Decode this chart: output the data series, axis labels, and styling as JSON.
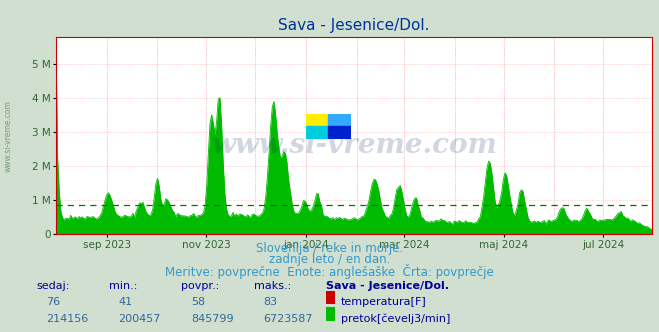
{
  "title": "Sava - Jesenice/Dol.",
  "title_color": "#003399",
  "bg_color": "#d0dfd0",
  "plot_bg_color": "#ffffff",
  "flow_color": "#00bb00",
  "temp_color": "#cc0000",
  "avg_line_color": "#007700",
  "ytick_labels": [
    "0",
    "1 M",
    "2 M",
    "3 M",
    "4 M",
    "5 M"
  ],
  "ytick_values": [
    0,
    1000000,
    2000000,
    3000000,
    4000000,
    5000000
  ],
  "tick_color": "#336633",
  "subtitle_lines": [
    "Slovenija / reke in morje.",
    "zadnje leto / en dan.",
    "Meritve: povprečne  Enote: anglešaške  Črta: povprečje"
  ],
  "subtitle_color": "#3399cc",
  "subtitle_fontsize": 8.5,
  "footer_label_color": "#000099",
  "footer_value_color": "#336699",
  "watermark": "www.si-vreme.com",
  "watermark_color": "#0a2060",
  "watermark_alpha": 0.18,
  "sedaj": 214156,
  "min_val": 200457,
  "povpr": 845799,
  "maks": 6723587,
  "sedaj_temp": 76,
  "min_temp": 41,
  "povpr_temp": 58,
  "maks_temp": 83,
  "avg_flow": 845799,
  "display_ticks": [
    31,
    92,
    153,
    213,
    274,
    335
  ],
  "display_labels": [
    "sep 2023",
    "nov 2023",
    "jan 2024",
    "mar 2024",
    "maj 2024",
    "jul 2024"
  ],
  "all_month_ticks": [
    31,
    62,
    92,
    122,
    153,
    184,
    213,
    244,
    274,
    305,
    335
  ],
  "vgrid_color": "#dd8888",
  "hgrid_color": "#ffaaaa",
  "vgrid_dotted_color": "#ddaaaa",
  "spine_color": "#cc0000",
  "ylim_max": 5800000
}
